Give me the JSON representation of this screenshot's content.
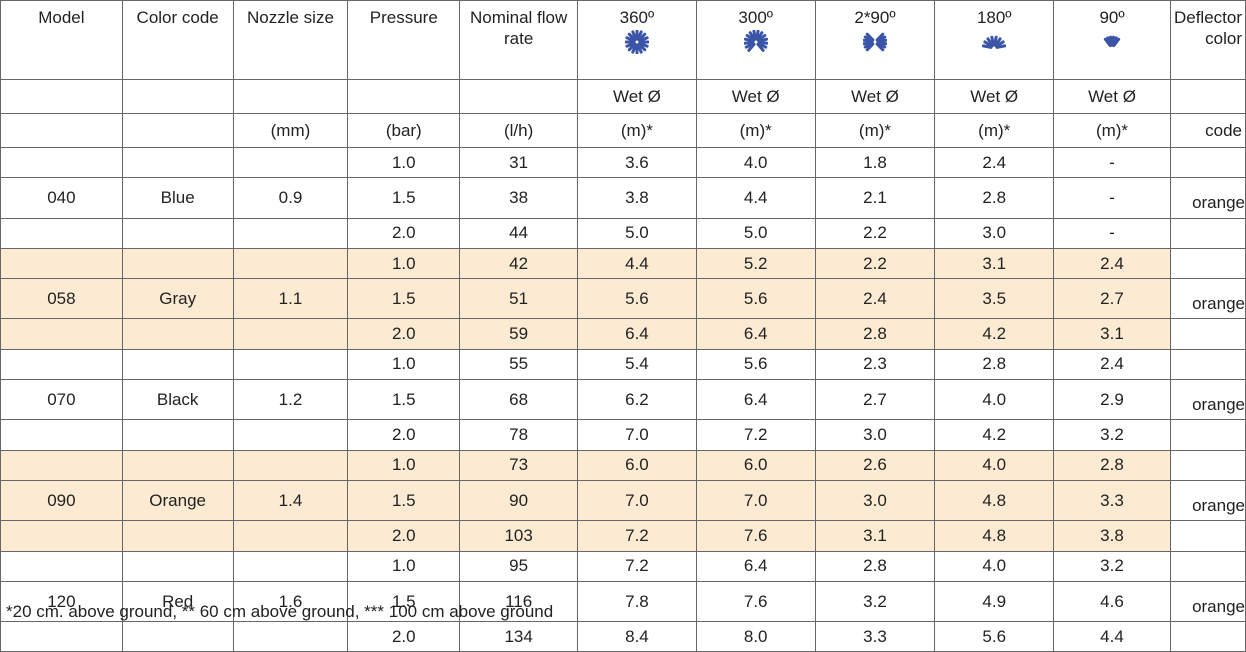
{
  "table": {
    "header": [
      "Model",
      "Color code",
      "Nozzle size",
      "Pressure",
      "Nominal flow rate",
      "360º",
      "300º",
      "2*90º",
      "180º",
      "90º",
      "Deflector color"
    ],
    "subheader": [
      "",
      "",
      "",
      "",
      "",
      "Wet Ø",
      "Wet Ø",
      "Wet Ø",
      "Wet Ø",
      "Wet Ø",
      ""
    ],
    "units": [
      "",
      "",
      "(mm)",
      "(bar)",
      "(l/h)",
      "(m)*",
      "(m)*",
      "(m)*",
      "(m)*",
      "(m)*",
      "code"
    ],
    "groups": [
      {
        "model": "040",
        "color": "Blue",
        "nozzle": "0.9",
        "deflector": "orange",
        "rows": [
          [
            "1.0",
            "31",
            "3.6",
            "4.0",
            "1.8",
            "2.4",
            "-"
          ],
          [
            "1.5",
            "38",
            "3.8",
            "4.4",
            "2.1",
            "2.8",
            "-"
          ],
          [
            "2.0",
            "44",
            "5.0",
            "5.0",
            "2.2",
            "3.0",
            "-"
          ]
        ]
      },
      {
        "model": "058",
        "color": "Gray",
        "nozzle": "1.1",
        "deflector": "orange",
        "rows": [
          [
            "1.0",
            "42",
            "4.4",
            "5.2",
            "2.2",
            "3.1",
            "2.4"
          ],
          [
            "1.5",
            "51",
            "5.6",
            "5.6",
            "2.4",
            "3.5",
            "2.7"
          ],
          [
            "2.0",
            "59",
            "6.4",
            "6.4",
            "2.8",
            "4.2",
            "3.1"
          ]
        ]
      },
      {
        "model": "070",
        "color": "Black",
        "nozzle": "1.2",
        "deflector": "orange",
        "rows": [
          [
            "1.0",
            "55",
            "5.4",
            "5.6",
            "2.3",
            "2.8",
            "2.4"
          ],
          [
            "1.5",
            "68",
            "6.2",
            "6.4",
            "2.7",
            "4.0",
            "2.9"
          ],
          [
            "2.0",
            "78",
            "7.0",
            "7.2",
            "3.0",
            "4.2",
            "3.2"
          ]
        ]
      },
      {
        "model": "090",
        "color": "Orange",
        "nozzle": "1.4",
        "deflector": "orange",
        "rows": [
          [
            "1.0",
            "73",
            "6.0",
            "6.0",
            "2.6",
            "4.0",
            "2.8"
          ],
          [
            "1.5",
            "90",
            "7.0",
            "7.0",
            "3.0",
            "4.8",
            "3.3"
          ],
          [
            "2.0",
            "103",
            "7.2",
            "7.6",
            "3.1",
            "4.8",
            "3.8"
          ]
        ]
      },
      {
        "model": "120",
        "color": "Red",
        "nozzle": "1.6",
        "deflector": "orange",
        "rows": [
          [
            "1.0",
            "95",
            "7.2",
            "6.4",
            "2.8",
            "4.0",
            "3.2"
          ],
          [
            "1.5",
            "116",
            "7.8",
            "7.6",
            "3.2",
            "4.9",
            "4.6"
          ],
          [
            "2.0",
            "134",
            "8.4",
            "8.0",
            "3.3",
            "5.6",
            "4.4"
          ]
        ]
      }
    ]
  },
  "footnote": "*20 cm. above ground, ** 60 cm above ground, *** 100 cm above ground"
}
